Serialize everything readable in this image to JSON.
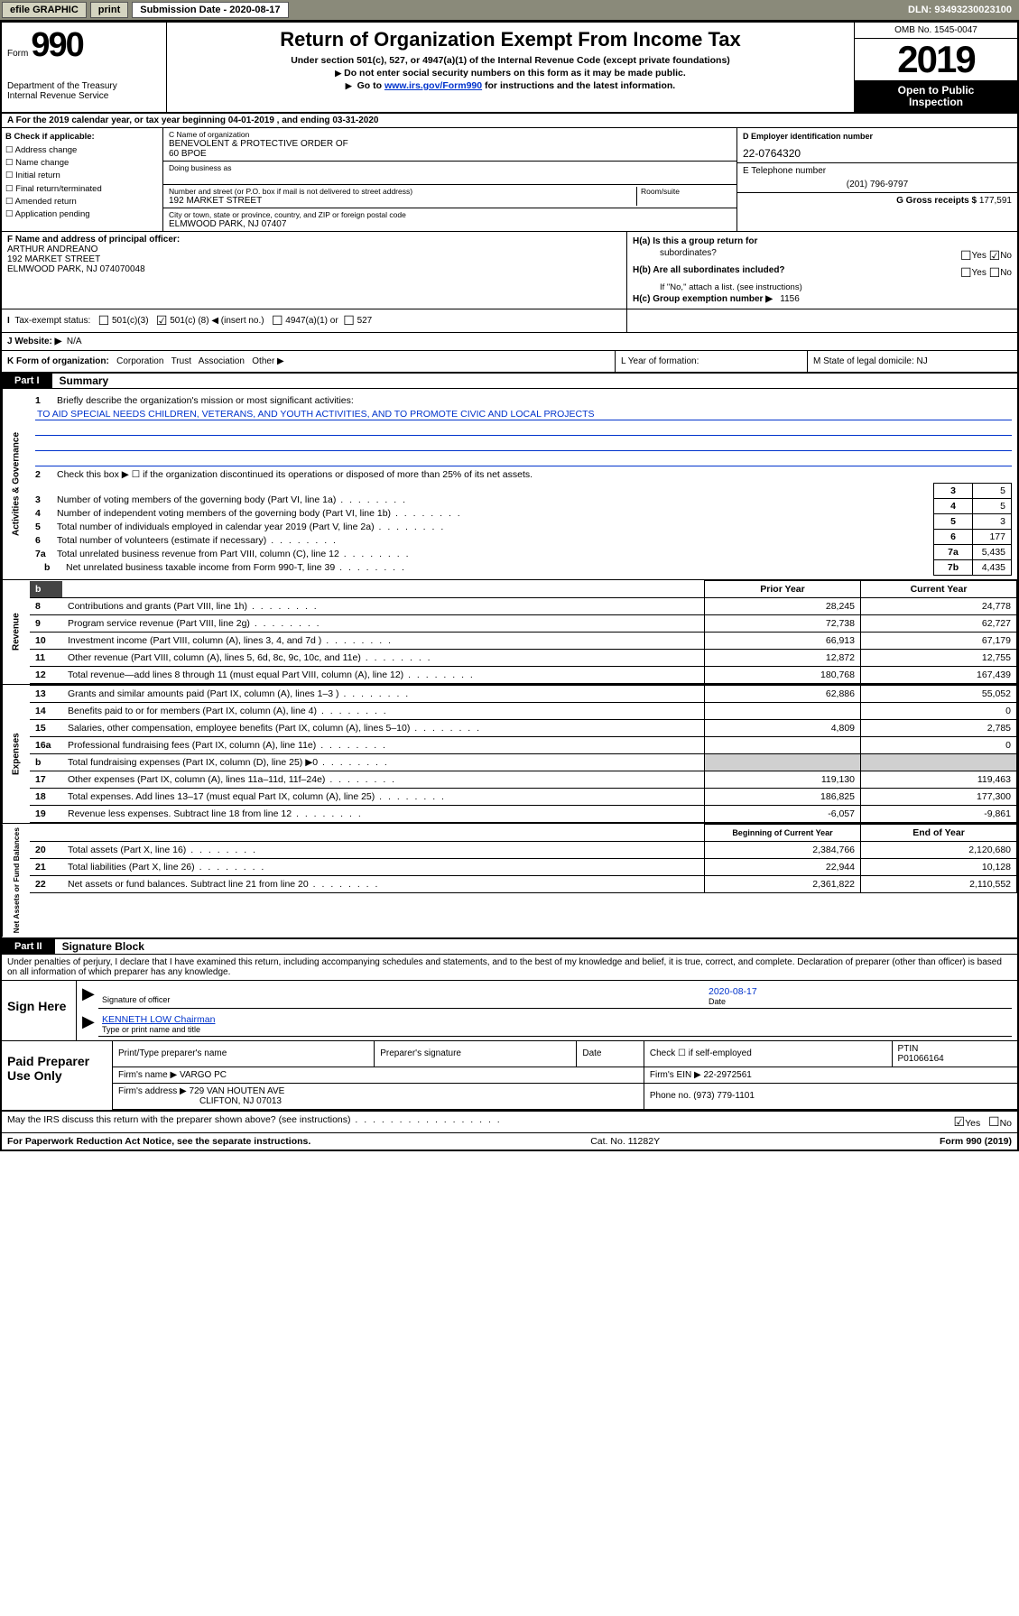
{
  "topbar": {
    "efile": "efile GRAPHIC",
    "print": "print",
    "sub_label": "Submission Date - 2020-08-17",
    "dln": "DLN: 93493230023100"
  },
  "header": {
    "form_prefix": "Form",
    "form_no": "990",
    "dept1": "Department of the Treasury",
    "dept2": "Internal Revenue Service",
    "title": "Return of Organization Exempt From Income Tax",
    "sub1": "Under section 501(c), 527, or 4947(a)(1) of the Internal Revenue Code (except private foundations)",
    "sub2": "Do not enter social security numbers on this form as it may be made public.",
    "sub3_pre": "Go to ",
    "sub3_link": "www.irs.gov/Form990",
    "sub3_post": " for instructions and the latest information.",
    "omb": "OMB No. 1545-0047",
    "year": "2019",
    "open1": "Open to Public",
    "open2": "Inspection"
  },
  "row_a": "A For the 2019 calendar year, or tax year beginning 04-01-2019    , and ending 03-31-2020",
  "col_b": {
    "hdr": "B Check if applicable:",
    "c1": "Address change",
    "c2": "Name change",
    "c3": "Initial return",
    "c4": "Final return/terminated",
    "c5": "Amended return",
    "c6": "Application pending"
  },
  "col_c": {
    "name_lbl": "C Name of organization",
    "name": "BENEVOLENT & PROTECTIVE ORDER OF",
    "name2": "60 BPOE",
    "dba_lbl": "Doing business as",
    "addr_lbl": "Number and street (or P.O. box if mail is not delivered to street address)",
    "addr": "192 MARKET STREET",
    "room_lbl": "Room/suite",
    "city_lbl": "City or town, state or province, country, and ZIP or foreign postal code",
    "city": "ELMWOOD PARK, NJ  07407"
  },
  "col_de": {
    "ein_lbl": "D Employer identification number",
    "ein": "22-0764320",
    "tel_lbl": "E Telephone number",
    "tel": "(201) 796-9797",
    "gross_lbl": "G Gross receipts $",
    "gross": "177,591"
  },
  "col_f": {
    "lbl": "F Name and address of principal officer:",
    "l1": "ARTHUR ANDREANO",
    "l2": "192 MARKET STREET",
    "l3": "ELMWOOD PARK, NJ  074070048"
  },
  "col_h": {
    "ha": "H(a)  Is this a group return for",
    "ha2": "subordinates?",
    "hb": "H(b)  Are all subordinates included?",
    "hb_note": "If \"No,\" attach a list. (see instructions)",
    "hc": "H(c)  Group exemption number ▶",
    "hc_val": "1156",
    "yes": "Yes",
    "no": "No"
  },
  "row_tax": {
    "lbl": "Tax-exempt status:",
    "c1": "501(c)(3)",
    "c2_pre": "501(c) (",
    "c2_val": "8",
    "c2_post": ") ◀ (insert no.)",
    "c3": "4947(a)(1) or",
    "c4": "527"
  },
  "row_web": {
    "lbl": "J   Website: ▶",
    "val": "N/A"
  },
  "row_k": {
    "lbl": "K Form of organization:",
    "c1": "Corporation",
    "c2": "Trust",
    "c3": "Association",
    "c4": "Other ▶"
  },
  "row_l": "L Year of formation:",
  "row_m": "M State of legal domicile: NJ",
  "part1": {
    "tab": "Part I",
    "title": "Summary"
  },
  "mission": {
    "num": "1",
    "lbl": "Briefly describe the organization's mission or most significant activities:",
    "val": "TO AID SPECIAL NEEDS CHILDREN, VETERANS, AND YOUTH ACTIVITIES, AND TO PROMOTE CIVIC AND LOCAL PROJECTS"
  },
  "gov": {
    "label": "Activities & Governance",
    "l2": "Check this box ▶ ☐  if the organization discontinued its operations or disposed of more than 25% of its net assets.",
    "l3": "Number of voting members of the governing body (Part VI, line 1a)",
    "l4": "Number of independent voting members of the governing body (Part VI, line 1b)",
    "l5": "Total number of individuals employed in calendar year 2019 (Part V, line 2a)",
    "l6": "Total number of volunteers (estimate if necessary)",
    "l7a": "Total unrelated business revenue from Part VIII, column (C), line 12",
    "l7b": "Net unrelated business taxable income from Form 990-T, line 39",
    "v3": "5",
    "v4": "5",
    "v5": "3",
    "v6": "177",
    "v7a": "5,435",
    "v7b": "4,435"
  },
  "rev": {
    "label": "Revenue",
    "hdr_prior": "Prior Year",
    "hdr_cur": "Current Year",
    "rows": [
      {
        "n": "8",
        "d": "Contributions and grants (Part VIII, line 1h)",
        "p": "28,245",
        "c": "24,778"
      },
      {
        "n": "9",
        "d": "Program service revenue (Part VIII, line 2g)",
        "p": "72,738",
        "c": "62,727"
      },
      {
        "n": "10",
        "d": "Investment income (Part VIII, column (A), lines 3, 4, and 7d )",
        "p": "66,913",
        "c": "67,179"
      },
      {
        "n": "11",
        "d": "Other revenue (Part VIII, column (A), lines 5, 6d, 8c, 9c, 10c, and 11e)",
        "p": "12,872",
        "c": "12,755"
      },
      {
        "n": "12",
        "d": "Total revenue—add lines 8 through 11 (must equal Part VIII, column (A), line 12)",
        "p": "180,768",
        "c": "167,439"
      }
    ]
  },
  "exp": {
    "label": "Expenses",
    "rows": [
      {
        "n": "13",
        "d": "Grants and similar amounts paid (Part IX, column (A), lines 1–3 )",
        "p": "62,886",
        "c": "55,052"
      },
      {
        "n": "14",
        "d": "Benefits paid to or for members (Part IX, column (A), line 4)",
        "p": "",
        "c": "0"
      },
      {
        "n": "15",
        "d": "Salaries, other compensation, employee benefits (Part IX, column (A), lines 5–10)",
        "p": "4,809",
        "c": "2,785"
      },
      {
        "n": "16a",
        "d": "Professional fundraising fees (Part IX, column (A), line 11e)",
        "p": "",
        "c": "0"
      },
      {
        "n": "b",
        "d": "Total fundraising expenses (Part IX, column (D), line 25) ▶0",
        "p": "GRAY",
        "c": "GRAY"
      },
      {
        "n": "17",
        "d": "Other expenses (Part IX, column (A), lines 11a–11d, 11f–24e)",
        "p": "119,130",
        "c": "119,463"
      },
      {
        "n": "18",
        "d": "Total expenses. Add lines 13–17 (must equal Part IX, column (A), line 25)",
        "p": "186,825",
        "c": "177,300"
      },
      {
        "n": "19",
        "d": "Revenue less expenses. Subtract line 18 from line 12",
        "p": "-6,057",
        "c": "-9,861"
      }
    ]
  },
  "net": {
    "label": "Net Assets or Fund Balances",
    "hdr_beg": "Beginning of Current Year",
    "hdr_end": "End of Year",
    "rows": [
      {
        "n": "20",
        "d": "Total assets (Part X, line 16)",
        "p": "2,384,766",
        "c": "2,120,680"
      },
      {
        "n": "21",
        "d": "Total liabilities (Part X, line 26)",
        "p": "22,944",
        "c": "10,128"
      },
      {
        "n": "22",
        "d": "Net assets or fund balances. Subtract line 21 from line 20",
        "p": "2,361,822",
        "c": "2,110,552"
      }
    ]
  },
  "part2": {
    "tab": "Part II",
    "title": "Signature Block"
  },
  "penalty": "Under penalties of perjury, I declare that I have examined this return, including accompanying schedules and statements, and to the best of my knowledge and belief, it is true, correct, and complete. Declaration of preparer (other than officer) is based on all information of which preparer has any knowledge.",
  "sign": {
    "left": "Sign Here",
    "date": "2020-08-17",
    "date_lbl": "Date",
    "sig_lbl": "Signature of officer",
    "name": "KENNETH LOW Chairman",
    "name_lbl": "Type or print name and title"
  },
  "paid": {
    "left": "Paid Preparer Use Only",
    "h1": "Print/Type preparer's name",
    "h2": "Preparer's signature",
    "h3": "Date",
    "h4": "Check ☐ if self-employed",
    "h5_lbl": "PTIN",
    "h5": "P01066164",
    "firm_lbl": "Firm's name    ▶",
    "firm": "VARGO PC",
    "ein_lbl": "Firm's EIN ▶",
    "ein": "22-2972561",
    "addr_lbl": "Firm's address ▶",
    "addr1": "729 VAN HOUTEN AVE",
    "addr2": "CLIFTON, NJ  07013",
    "phone_lbl": "Phone no.",
    "phone": "(973) 779-1101"
  },
  "discuss": {
    "txt": "May the IRS discuss this return with the preparer shown above? (see instructions)",
    "yes": "Yes",
    "no": "No"
  },
  "foot": {
    "l": "For Paperwork Reduction Act Notice, see the separate instructions.",
    "c": "Cat. No. 11282Y",
    "r": "Form 990 (2019)"
  }
}
